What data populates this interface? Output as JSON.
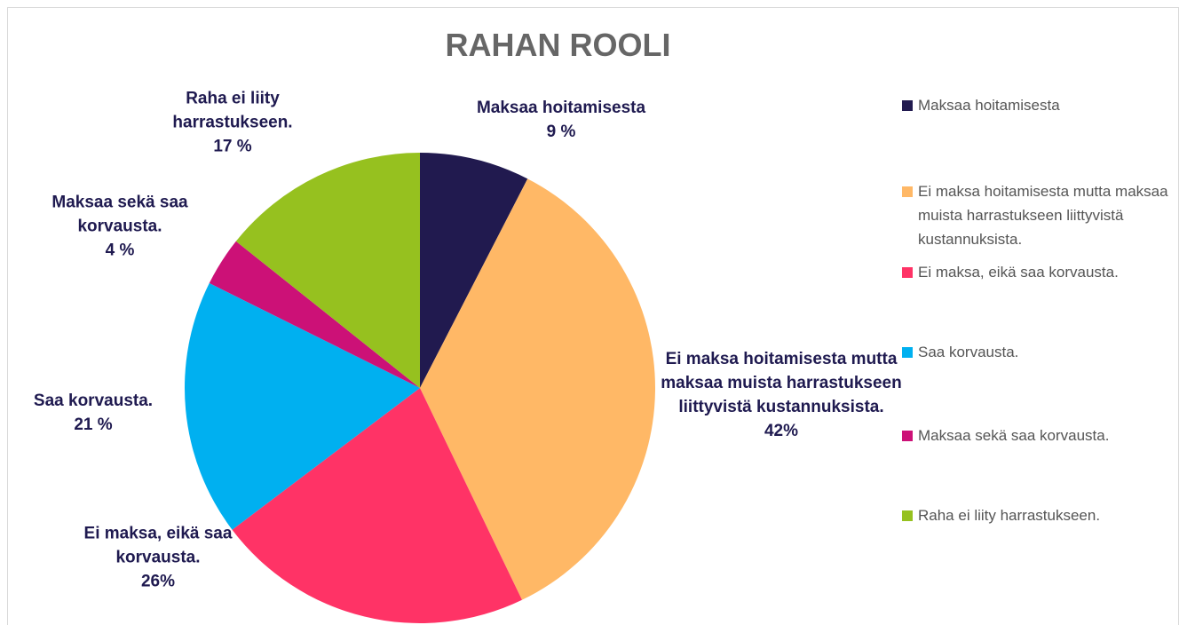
{
  "chart_data": {
    "type": "pie",
    "title": "RAHAN ROOLI",
    "categories": [
      "Maksaa hoitamisesta",
      "Ei maksa hoitamisesta mutta maksaa muista harrastukseen liittyvistä kustannuksista.",
      "Ei maksa, eikä saa korvausta.",
      "Saa korvausta.",
      "Maksaa sekä saa korvausta.",
      "Raha ei liity harrastukseen."
    ],
    "values": [
      9,
      42,
      26,
      21,
      4,
      17
    ],
    "value_labels": [
      "9 %",
      "42%",
      "26%",
      "21 %",
      "4 %",
      "17 %"
    ],
    "colors": [
      "#211a4f",
      "#ffb866",
      "#ff3366",
      "#00b0f0",
      "#cc1177",
      "#96c11f"
    ],
    "legend": "right"
  }
}
